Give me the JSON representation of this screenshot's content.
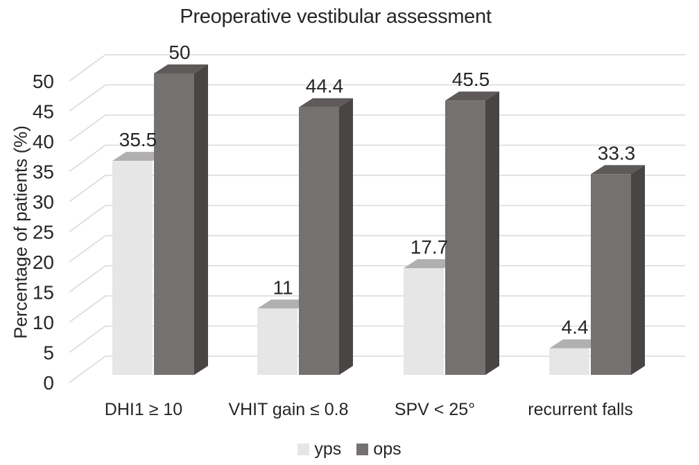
{
  "chart_data": {
    "type": "bar",
    "variant": "3d-clustered-column",
    "title": "Preoperative vestibular assessment",
    "xlabel": "",
    "ylabel": "Percentage of patients (%)",
    "categories": [
      "DHI1 ≥ 10",
      "VHIT gain ≤ 0.8",
      "SPV < 25°",
      "recurrent falls"
    ],
    "series": [
      {
        "name": "yps",
        "values": [
          35.5,
          11,
          17.7,
          4.4
        ],
        "front_color": "#e7e6e6",
        "top_color": "#b1b0b0",
        "side_color": "#c8c7c7"
      },
      {
        "name": "ops",
        "values": [
          50,
          44.4,
          45.5,
          33.3
        ],
        "front_color": "#767171",
        "top_color": "#5e5a5a",
        "side_color": "#494545"
      }
    ],
    "y_ticks": [
      0,
      5,
      10,
      15,
      20,
      25,
      30,
      35,
      40,
      45,
      50
    ],
    "ylim": [
      0,
      50
    ],
    "grid": true,
    "legend_position": "bottom",
    "colors": {
      "gridline": "#d9d9d9",
      "text": "#262626",
      "background": "#ffffff"
    }
  }
}
